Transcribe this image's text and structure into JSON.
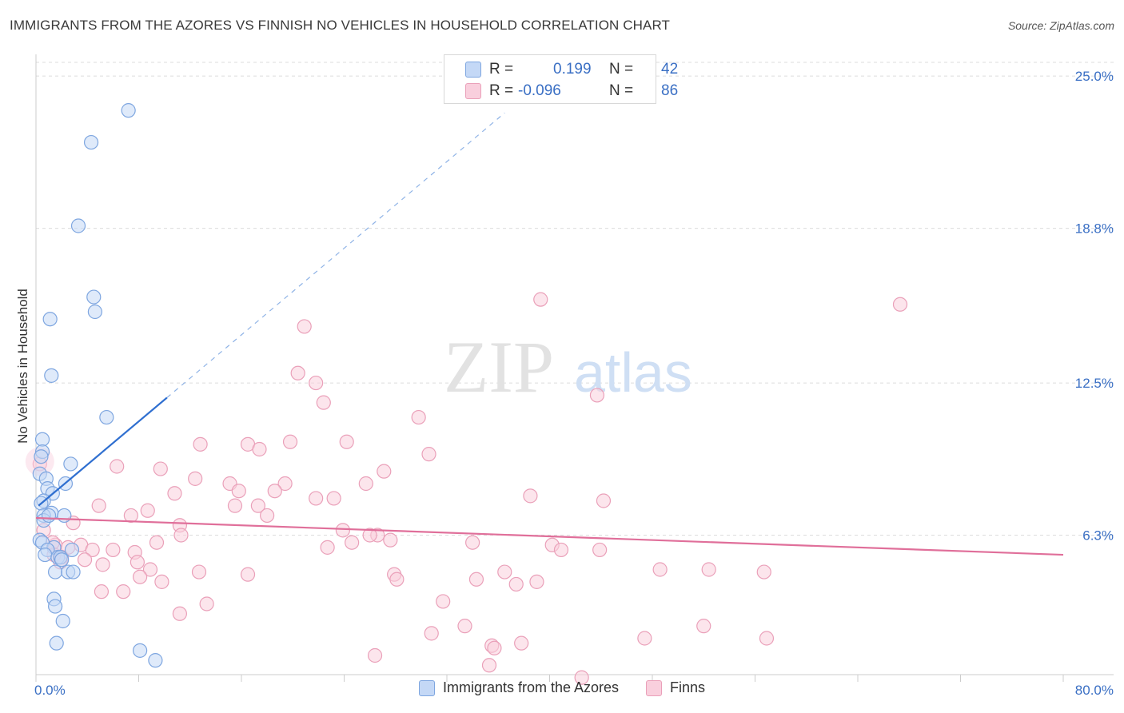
{
  "title": "IMMIGRANTS FROM THE AZORES VS FINNISH NO VEHICLES IN HOUSEHOLD CORRELATION CHART",
  "source": "Source: ZipAtlas.com",
  "watermark": {
    "zip": "ZIP",
    "atlas": "atlas"
  },
  "stats": [
    {
      "r_label": "R =",
      "r_value": "0.199",
      "n_label": "N =",
      "n_value": "42"
    },
    {
      "r_label": "R =",
      "r_value": "-0.096",
      "n_label": "N =",
      "n_value": "86"
    }
  ],
  "colors": {
    "blue_fill": "#c4d8f6",
    "blue_stroke": "#7ea6e0",
    "blue_line": "#2f6fd0",
    "pink_fill": "#f9cfdd",
    "pink_stroke": "#eaa0b9",
    "pink_line": "#e06f9a",
    "axis_label": "#3a6fc4"
  },
  "chart_data": {
    "type": "scatter",
    "title": "IMMIGRANTS FROM THE AZORES VS FINNISH NO VEHICLES IN HOUSEHOLD CORRELATION CHART",
    "ylabel": "No Vehicles in Household",
    "xlabel": "",
    "xlim": [
      0,
      80
    ],
    "ylim": [
      0,
      26
    ],
    "x_tick_labels": [
      "0.0%",
      "80.0%"
    ],
    "y_ticks": [
      6.3,
      12.5,
      18.8,
      25.0
    ],
    "y_tick_labels": [
      "6.3%",
      "12.5%",
      "18.8%",
      "25.0%"
    ],
    "grid": true,
    "legend": [
      "Immigrants from the Azores",
      "Finns"
    ],
    "series": [
      {
        "name": "Immigrants from the Azores",
        "r": 0.199,
        "n": 42,
        "trend": {
          "x0": 0.2,
          "y0": 7.5,
          "x1": 10.2,
          "y1": 11.9,
          "dash_x1": 36.5,
          "dash_y1": 23.5
        },
        "points": [
          [
            7.2,
            23.6
          ],
          [
            4.3,
            22.3
          ],
          [
            3.3,
            18.9
          ],
          [
            4.5,
            16.0
          ],
          [
            4.6,
            15.4
          ],
          [
            1.1,
            15.1
          ],
          [
            1.2,
            12.8
          ],
          [
            5.5,
            11.1
          ],
          [
            0.5,
            10.2
          ],
          [
            0.5,
            9.7
          ],
          [
            0.4,
            9.5
          ],
          [
            2.7,
            9.2
          ],
          [
            0.3,
            8.8
          ],
          [
            0.8,
            8.6
          ],
          [
            2.3,
            8.4
          ],
          [
            0.9,
            8.2
          ],
          [
            1.3,
            8.0
          ],
          [
            0.6,
            7.7
          ],
          [
            0.4,
            7.6
          ],
          [
            1.2,
            7.2
          ],
          [
            0.6,
            7.1
          ],
          [
            2.2,
            7.1
          ],
          [
            0.6,
            6.9
          ],
          [
            0.3,
            6.1
          ],
          [
            0.5,
            6.0
          ],
          [
            1.4,
            5.8
          ],
          [
            0.9,
            5.7
          ],
          [
            2.8,
            5.7
          ],
          [
            0.7,
            5.5
          ],
          [
            1.7,
            5.4
          ],
          [
            1.9,
            5.4
          ],
          [
            1.5,
            4.8
          ],
          [
            2.5,
            4.8
          ],
          [
            1.4,
            3.7
          ],
          [
            1.5,
            3.4
          ],
          [
            2.1,
            2.8
          ],
          [
            1.6,
            1.9
          ],
          [
            8.1,
            1.6
          ],
          [
            9.3,
            1.2
          ],
          [
            2.9,
            4.8
          ],
          [
            1.0,
            7.1
          ],
          [
            2.0,
            5.3
          ]
        ]
      },
      {
        "name": "Finns",
        "r": -0.096,
        "n": 86,
        "trend": {
          "x0": 0,
          "y0": 7.0,
          "x1": 80,
          "y1": 5.5
        },
        "points": [
          [
            39.3,
            15.9
          ],
          [
            67.3,
            15.7
          ],
          [
            20.9,
            14.8
          ],
          [
            20.4,
            12.9
          ],
          [
            21.8,
            12.5
          ],
          [
            43.7,
            12.0
          ],
          [
            22.4,
            11.7
          ],
          [
            29.8,
            11.1
          ],
          [
            12.8,
            10.0
          ],
          [
            16.5,
            10.0
          ],
          [
            19.8,
            10.1
          ],
          [
            24.2,
            10.1
          ],
          [
            17.4,
            9.8
          ],
          [
            30.6,
            9.6
          ],
          [
            6.3,
            9.1
          ],
          [
            9.7,
            9.0
          ],
          [
            27.1,
            8.9
          ],
          [
            12.4,
            8.6
          ],
          [
            19.4,
            8.4
          ],
          [
            15.1,
            8.4
          ],
          [
            15.8,
            8.1
          ],
          [
            10.8,
            8.0
          ],
          [
            18.6,
            8.1
          ],
          [
            25.7,
            8.4
          ],
          [
            38.5,
            7.9
          ],
          [
            44.2,
            7.7
          ],
          [
            21.8,
            7.8
          ],
          [
            23.2,
            7.8
          ],
          [
            4.9,
            7.5
          ],
          [
            15.5,
            7.5
          ],
          [
            17.3,
            7.5
          ],
          [
            8.7,
            7.3
          ],
          [
            7.4,
            7.1
          ],
          [
            18.0,
            7.1
          ],
          [
            11.2,
            6.7
          ],
          [
            2.9,
            6.8
          ],
          [
            23.9,
            6.5
          ],
          [
            26.6,
            6.3
          ],
          [
            26.0,
            6.3
          ],
          [
            11.3,
            6.3
          ],
          [
            24.6,
            6.0
          ],
          [
            27.6,
            6.1
          ],
          [
            9.4,
            6.0
          ],
          [
            22.7,
            5.8
          ],
          [
            40.2,
            5.9
          ],
          [
            34.0,
            6.0
          ],
          [
            3.5,
            5.9
          ],
          [
            4.4,
            5.7
          ],
          [
            6.0,
            5.7
          ],
          [
            7.7,
            5.6
          ],
          [
            40.9,
            5.7
          ],
          [
            43.9,
            5.7
          ],
          [
            1.5,
            5.9
          ],
          [
            2.5,
            5.8
          ],
          [
            1.3,
            6.0
          ],
          [
            2.0,
            5.4
          ],
          [
            1.9,
            5.2
          ],
          [
            3.8,
            5.3
          ],
          [
            5.2,
            5.1
          ],
          [
            7.9,
            5.2
          ],
          [
            12.7,
            4.8
          ],
          [
            8.9,
            4.9
          ],
          [
            8.1,
            4.6
          ],
          [
            9.8,
            4.4
          ],
          [
            16.5,
            4.7
          ],
          [
            27.9,
            4.7
          ],
          [
            28.1,
            4.5
          ],
          [
            34.3,
            4.5
          ],
          [
            36.5,
            4.8
          ],
          [
            37.4,
            4.3
          ],
          [
            39.0,
            4.4
          ],
          [
            48.6,
            4.9
          ],
          [
            52.4,
            4.9
          ],
          [
            56.7,
            4.8
          ],
          [
            5.1,
            4.0
          ],
          [
            6.8,
            4.0
          ],
          [
            13.3,
            3.5
          ],
          [
            31.7,
            3.6
          ],
          [
            11.2,
            3.1
          ],
          [
            33.4,
            2.6
          ],
          [
            52.0,
            2.6
          ],
          [
            30.8,
            2.3
          ],
          [
            47.4,
            2.1
          ],
          [
            56.9,
            2.1
          ],
          [
            35.5,
            1.8
          ],
          [
            35.7,
            1.7
          ]
        ]
      }
    ]
  },
  "extra_pink_points": [
    [
      26.4,
      1.4
    ],
    [
      35.3,
      1.0
    ],
    [
      37.8,
      1.9
    ],
    [
      42.5,
      0.5
    ],
    [
      0.3,
      9.2
    ],
    [
      0.6,
      6.5
    ],
    [
      1.4,
      5.5
    ]
  ],
  "legend_labels": {
    "blue": "Immigrants from the Azores",
    "pink": "Finns"
  }
}
